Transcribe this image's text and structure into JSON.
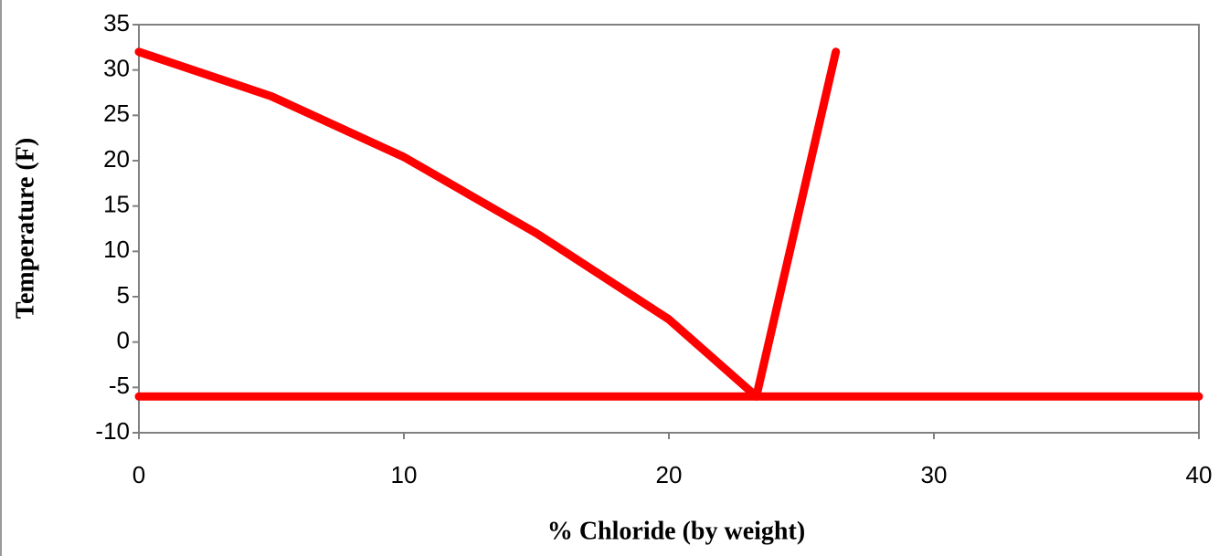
{
  "chart_data": {
    "type": "line",
    "xlabel": "% Chloride (by weight)",
    "ylabel": "Temperature (F)",
    "xlim": [
      0,
      40
    ],
    "xticks": [
      0,
      10,
      20,
      30,
      40
    ],
    "ylim": [
      -10,
      35
    ],
    "yticks": [
      -10,
      -5,
      0,
      5,
      10,
      15,
      20,
      25,
      30,
      35
    ],
    "series": [
      {
        "color": "#ff0000",
        "x": [
          0,
          5,
          10,
          15,
          20,
          23.3
        ],
        "values": [
          32,
          27.1,
          20.4,
          12,
          2.5,
          -6
        ]
      },
      {
        "color": "#ff0000",
        "x": [
          23.3,
          26.3
        ],
        "values": [
          -6,
          32
        ]
      },
      {
        "color": "#ff0000",
        "x": [
          0,
          40
        ],
        "values": [
          -6,
          -6
        ]
      }
    ]
  }
}
